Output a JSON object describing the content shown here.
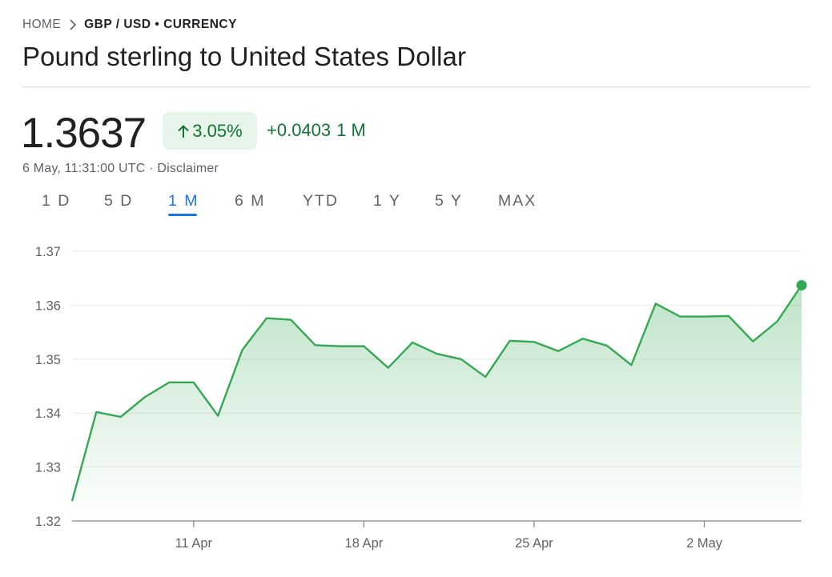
{
  "breadcrumb": {
    "home": "HOME",
    "current": "GBP / USD • CURRENCY"
  },
  "title": "Pound sterling to United States Dollar",
  "quote": {
    "price": "1.3637",
    "change_percent": "3.05%",
    "change_direction": "up",
    "change_absolute": "+0.0403",
    "change_period": "1 M",
    "timestamp": "6 May, 11:31:00 UTC · Disclaimer"
  },
  "range_tabs": [
    {
      "label": "1 D",
      "active": false
    },
    {
      "label": "5 D",
      "active": false
    },
    {
      "label": "1 M",
      "active": true
    },
    {
      "label": "6 M",
      "active": false
    },
    {
      "label": "YTD",
      "active": false
    },
    {
      "label": "1 Y",
      "active": false
    },
    {
      "label": "5 Y",
      "active": false
    },
    {
      "label": "MAX",
      "active": false
    }
  ],
  "colors": {
    "positive": "#137333",
    "line": "#34a853",
    "active_tab": "#1a73e8"
  },
  "chart_data": {
    "type": "area",
    "x": [
      "2025-04-06",
      "2025-04-07",
      "2025-04-08",
      "2025-04-09",
      "2025-04-10",
      "2025-04-11",
      "2025-04-12",
      "2025-04-13",
      "2025-04-14",
      "2025-04-15",
      "2025-04-16",
      "2025-04-17",
      "2025-04-18",
      "2025-04-19",
      "2025-04-20",
      "2025-04-21",
      "2025-04-22",
      "2025-04-23",
      "2025-04-24",
      "2025-04-25",
      "2025-04-26",
      "2025-04-27",
      "2025-04-28",
      "2025-04-29",
      "2025-04-30",
      "2025-05-01",
      "2025-05-02",
      "2025-05-03",
      "2025-05-04",
      "2025-05-05",
      "2025-05-06"
    ],
    "values": [
      1.3237,
      1.3402,
      1.3393,
      1.343,
      1.3457,
      1.3457,
      1.3395,
      1.3517,
      1.3576,
      1.3573,
      1.3526,
      1.3524,
      1.3524,
      1.3484,
      1.3531,
      1.351,
      1.35,
      1.3467,
      1.3534,
      1.3532,
      1.3515,
      1.3538,
      1.3525,
      1.3489,
      1.3603,
      1.3579,
      1.3579,
      1.358,
      1.3533,
      1.357,
      1.3637
    ],
    "x_ticks": [
      {
        "date": "2025-04-11",
        "label": "11 Apr"
      },
      {
        "date": "2025-04-18",
        "label": "18 Apr"
      },
      {
        "date": "2025-04-25",
        "label": "25 Apr"
      },
      {
        "date": "2025-05-02",
        "label": "2 May"
      }
    ],
    "y_ticks": [
      1.32,
      1.33,
      1.34,
      1.35,
      1.36,
      1.37
    ],
    "y_tick_labels": [
      "1.32",
      "1.33",
      "1.34",
      "1.35",
      "1.36",
      "1.37"
    ],
    "ylim": [
      1.32,
      1.37
    ],
    "grid": true,
    "last_point_marker": true
  }
}
